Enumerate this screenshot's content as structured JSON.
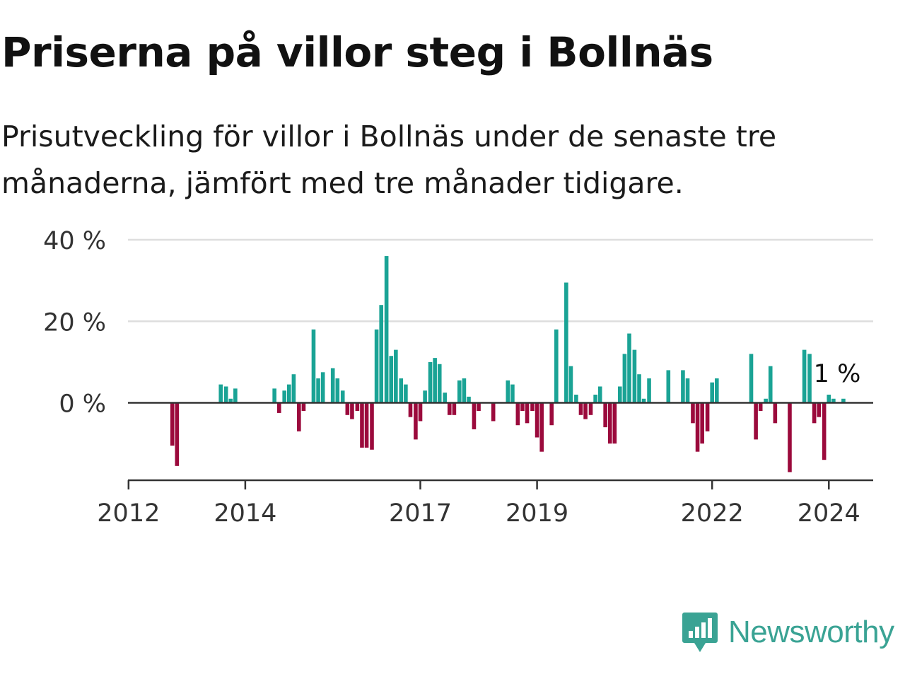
{
  "title": "Priserna på villor steg i Bollnäs",
  "subtitle": "Prisutveckling för villor i Bollnäs under de senaste tre månaderna, jämfört med tre månader tidigare.",
  "brand": {
    "name": "Newsworthy",
    "color": "#3aa394",
    "icon": "newsworthy-logo-icon"
  },
  "colors": {
    "positive": "#1aa395",
    "negative": "#9b0a3c",
    "grid": "#dedede",
    "axis": "#333333",
    "text": "#333333"
  },
  "chart_data": {
    "type": "bar",
    "xlabel": "",
    "ylabel": "",
    "ylim": [
      -19,
      40
    ],
    "y_ticks": [
      0,
      20,
      40
    ],
    "y_tick_labels": [
      "0 %",
      "20 %",
      "40 %"
    ],
    "x_ticks": [
      2012,
      2014,
      2017,
      2019,
      2022,
      2024
    ],
    "x_tick_labels": [
      "2012",
      "2014",
      "2017",
      "2019",
      "2022",
      "2024"
    ],
    "grid": true,
    "last_value_label": "1 %",
    "series": [
      {
        "values": [
          [
            2012.75,
            -10.5
          ],
          [
            2012.83,
            -15.5
          ],
          [
            2013.58,
            4.5
          ],
          [
            2013.67,
            4.0
          ],
          [
            2013.75,
            1.0
          ],
          [
            2013.83,
            3.5
          ],
          [
            2014.5,
            3.5
          ],
          [
            2014.58,
            -2.5
          ],
          [
            2014.67,
            3.0
          ],
          [
            2014.75,
            4.5
          ],
          [
            2014.83,
            7.0
          ],
          [
            2014.92,
            -7.0
          ],
          [
            2015.0,
            -2.0
          ],
          [
            2015.17,
            18.0
          ],
          [
            2015.25,
            6.0
          ],
          [
            2015.33,
            7.5
          ],
          [
            2015.5,
            8.5
          ],
          [
            2015.58,
            6.0
          ],
          [
            2015.67,
            3.0
          ],
          [
            2015.75,
            -3.0
          ],
          [
            2015.83,
            -4.0
          ],
          [
            2015.92,
            -2.0
          ],
          [
            2016.0,
            -11.0
          ],
          [
            2016.08,
            -11.0
          ],
          [
            2016.17,
            -11.5
          ],
          [
            2016.25,
            18.0
          ],
          [
            2016.33,
            24.0
          ],
          [
            2016.42,
            36.0
          ],
          [
            2016.5,
            11.5
          ],
          [
            2016.58,
            13.0
          ],
          [
            2016.67,
            6.0
          ],
          [
            2016.75,
            4.5
          ],
          [
            2016.83,
            -3.5
          ],
          [
            2016.92,
            -9.0
          ],
          [
            2017.0,
            -4.5
          ],
          [
            2017.08,
            3.0
          ],
          [
            2017.17,
            10.0
          ],
          [
            2017.25,
            11.0
          ],
          [
            2017.33,
            9.5
          ],
          [
            2017.42,
            2.5
          ],
          [
            2017.5,
            -3.0
          ],
          [
            2017.58,
            -3.0
          ],
          [
            2017.67,
            5.5
          ],
          [
            2017.75,
            6.0
          ],
          [
            2017.83,
            1.5
          ],
          [
            2017.92,
            -6.5
          ],
          [
            2018.0,
            -2.0
          ],
          [
            2018.25,
            -4.5
          ],
          [
            2018.5,
            5.5
          ],
          [
            2018.58,
            4.5
          ],
          [
            2018.67,
            -5.5
          ],
          [
            2018.75,
            -2.0
          ],
          [
            2018.83,
            -5.0
          ],
          [
            2018.92,
            -2.0
          ],
          [
            2019.0,
            -8.5
          ],
          [
            2019.08,
            -12.0
          ],
          [
            2019.25,
            -5.5
          ],
          [
            2019.33,
            18.0
          ],
          [
            2019.5,
            29.5
          ],
          [
            2019.58,
            9.0
          ],
          [
            2019.67,
            2.0
          ],
          [
            2019.75,
            -3.0
          ],
          [
            2019.83,
            -4.0
          ],
          [
            2019.92,
            -3.0
          ],
          [
            2020.0,
            2.0
          ],
          [
            2020.08,
            4.0
          ],
          [
            2020.17,
            -6.0
          ],
          [
            2020.25,
            -10.0
          ],
          [
            2020.33,
            -10.0
          ],
          [
            2020.42,
            4.0
          ],
          [
            2020.5,
            12.0
          ],
          [
            2020.58,
            17.0
          ],
          [
            2020.67,
            13.0
          ],
          [
            2020.75,
            7.0
          ],
          [
            2020.83,
            1.0
          ],
          [
            2020.92,
            6.0
          ],
          [
            2021.25,
            8.0
          ],
          [
            2021.5,
            8.0
          ],
          [
            2021.58,
            6.0
          ],
          [
            2021.67,
            -5.0
          ],
          [
            2021.75,
            -12.0
          ],
          [
            2021.83,
            -10.0
          ],
          [
            2021.92,
            -7.0
          ],
          [
            2022.0,
            5.0
          ],
          [
            2022.08,
            6.0
          ],
          [
            2022.67,
            12.0
          ],
          [
            2022.75,
            -9.0
          ],
          [
            2022.83,
            -2.0
          ],
          [
            2022.92,
            1.0
          ],
          [
            2023.0,
            9.0
          ],
          [
            2023.08,
            -5.0
          ],
          [
            2023.33,
            -17.0
          ],
          [
            2023.58,
            13.0
          ],
          [
            2023.67,
            12.0
          ],
          [
            2023.75,
            -5.0
          ],
          [
            2023.83,
            -3.5
          ],
          [
            2023.92,
            -14.0
          ],
          [
            2024.0,
            2.0
          ],
          [
            2024.08,
            1.0
          ],
          [
            2024.25,
            1.0
          ]
        ]
      }
    ]
  }
}
